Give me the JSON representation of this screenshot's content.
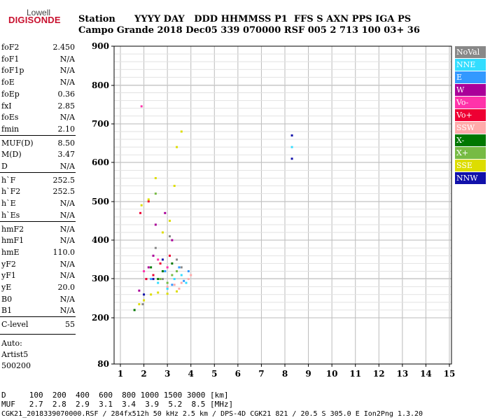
{
  "logo": {
    "top": "Lowell",
    "bottom": "DIGISONDE"
  },
  "header": {
    "row1": "Station      YYYY DAY   DDD HHMMSS P1  FFS S AXN PPS IGA PS",
    "row2": "Campo Grande 2018 Dec05 339 070000 RSF 005 2 713 100 03+ 36"
  },
  "params": [
    {
      "name": "foF2",
      "value": "2.450"
    },
    {
      "name": "foF1",
      "value": "N/A"
    },
    {
      "name": "foF1p",
      "value": "N/A"
    },
    {
      "name": "foE",
      "value": "N/A"
    },
    {
      "name": "foEp",
      "value": "0.36"
    },
    {
      "name": "fxI",
      "value": "2.85"
    },
    {
      "name": "foEs",
      "value": "N/A"
    },
    {
      "name": "fmin",
      "value": "2.10"
    },
    {
      "name": "MUF(D)",
      "value": "8.50"
    },
    {
      "name": "M(D)",
      "value": "3.47"
    },
    {
      "name": "D",
      "value": "N/A"
    },
    {
      "name": "h`F",
      "value": "252.5"
    },
    {
      "name": "h`F2",
      "value": "252.5"
    },
    {
      "name": "h`E",
      "value": "N/A"
    },
    {
      "name": "h`Es",
      "value": "N/A"
    },
    {
      "name": "hmF2",
      "value": "N/A"
    },
    {
      "name": "hmF1",
      "value": "N/A"
    },
    {
      "name": "hmE",
      "value": "110.0"
    },
    {
      "name": "yF2",
      "value": "N/A"
    },
    {
      "name": "yF1",
      "value": "N/A"
    },
    {
      "name": "yE",
      "value": "20.0"
    },
    {
      "name": "B0",
      "value": "N/A"
    },
    {
      "name": "B1",
      "value": "N/A"
    },
    {
      "name": "C-level",
      "value": "55"
    }
  ],
  "auto": {
    "line1": "Auto:",
    "line2": "Artist5",
    "line3": "500200"
  },
  "legend": [
    {
      "label": "NoVal",
      "color": "#888888"
    },
    {
      "label": "NNE",
      "color": "#33ddff"
    },
    {
      "label": "E",
      "color": "#3399ff"
    },
    {
      "label": "W",
      "color": "#aa0099"
    },
    {
      "label": "Vo-",
      "color": "#ff33aa"
    },
    {
      "label": "Vo+",
      "color": "#ee0033"
    },
    {
      "label": "SSW",
      "color": "#ffaaaa"
    },
    {
      "label": "X-",
      "color": "#007700"
    },
    {
      "label": "X+",
      "color": "#77bb44"
    },
    {
      "label": "SSE",
      "color": "#dddd00"
    },
    {
      "label": "NNW",
      "color": "#1111aa"
    }
  ],
  "footer": {
    "line1": "D     100  200  400  600  800 1000 1500 3000 [km]",
    "line2": "MUF   2.7  2.8  2.9  3.1  3.4  3.9  5.2  8.5 [MHz]",
    "line3": "CGK21_2018339070000.RSF / 284fx512h 50 kHz 2.5 km / DPS-4D CGK21 821 / 20.5 S 305.0 E Ion2Png 1.3.20"
  },
  "chart_data": {
    "type": "scatter",
    "xlabel": "",
    "ylabel": "",
    "xlim": [
      0.5,
      15
    ],
    "ylim": [
      80,
      900
    ],
    "xticks": [
      1,
      2,
      3,
      4,
      5,
      6,
      7,
      8,
      9,
      10,
      11,
      12,
      13,
      14,
      15
    ],
    "yticks": [
      80,
      200,
      300,
      400,
      500,
      600,
      700,
      800,
      900
    ],
    "grid": true,
    "series": [
      {
        "name": "NoVal",
        "color": "#888888",
        "points": [
          [
            1.95,
            235
          ],
          [
            2.1,
            300
          ],
          [
            2.5,
            380
          ],
          [
            3.1,
            410
          ],
          [
            3.4,
            350
          ],
          [
            2.8,
            300
          ],
          [
            3.6,
            330
          ]
        ]
      },
      {
        "name": "NNE",
        "color": "#33ddff",
        "points": [
          [
            2.6,
            290
          ],
          [
            3.0,
            275
          ],
          [
            3.3,
            300
          ],
          [
            3.6,
            310
          ],
          [
            3.8,
            290
          ],
          [
            8.3,
            640
          ],
          [
            2.9,
            320
          ]
        ]
      },
      {
        "name": "E",
        "color": "#3399ff",
        "points": [
          [
            2.3,
            300
          ],
          [
            2.9,
            320
          ],
          [
            3.5,
            330
          ],
          [
            3.7,
            295
          ],
          [
            3.9,
            320
          ],
          [
            3.2,
            285
          ]
        ]
      },
      {
        "name": "W",
        "color": "#aa0099",
        "points": [
          [
            2.2,
            330
          ],
          [
            2.5,
            440
          ],
          [
            2.9,
            470
          ],
          [
            3.2,
            400
          ],
          [
            1.8,
            270
          ],
          [
            2.4,
            360
          ]
        ]
      },
      {
        "name": "Vo-",
        "color": "#ff33aa",
        "points": [
          [
            2.0,
            320
          ],
          [
            2.6,
            350
          ],
          [
            3.0,
            330
          ],
          [
            1.9,
            745
          ],
          [
            2.4,
            300
          ]
        ]
      },
      {
        "name": "Vo+",
        "color": "#ee0033",
        "points": [
          [
            2.1,
            300
          ],
          [
            2.4,
            310
          ],
          [
            2.7,
            340
          ],
          [
            3.1,
            360
          ],
          [
            1.85,
            470
          ],
          [
            2.2,
            500
          ]
        ]
      },
      {
        "name": "SSW",
        "color": "#ffaaaa",
        "points": [
          [
            3.0,
            280
          ],
          [
            3.3,
            285
          ],
          [
            3.6,
            290
          ],
          [
            3.9,
            300
          ],
          [
            4.0,
            310
          ],
          [
            3.5,
            275
          ]
        ]
      },
      {
        "name": "X-",
        "color": "#007700",
        "points": [
          [
            1.6,
            220
          ],
          [
            2.6,
            300
          ],
          [
            2.8,
            320
          ],
          [
            3.2,
            340
          ],
          [
            2.3,
            330
          ]
        ]
      },
      {
        "name": "X+",
        "color": "#77bb44",
        "points": [
          [
            2.7,
            300
          ],
          [
            3.2,
            310
          ],
          [
            3.4,
            320
          ],
          [
            3.0,
            290
          ],
          [
            2.5,
            520
          ]
        ]
      },
      {
        "name": "SSE",
        "color": "#dddd00",
        "points": [
          [
            1.8,
            235
          ],
          [
            2.0,
            245
          ],
          [
            2.3,
            260
          ],
          [
            2.6,
            265
          ],
          [
            3.0,
            262
          ],
          [
            3.4,
            268
          ],
          [
            1.9,
            490
          ],
          [
            2.2,
            505
          ],
          [
            2.5,
            560
          ],
          [
            3.3,
            540
          ],
          [
            3.6,
            680
          ],
          [
            3.4,
            640
          ],
          [
            2.8,
            420
          ],
          [
            3.1,
            450
          ]
        ]
      },
      {
        "name": "NNW",
        "color": "#1111aa",
        "points": [
          [
            2.0,
            260
          ],
          [
            2.4,
            300
          ],
          [
            2.8,
            350
          ],
          [
            8.3,
            610
          ],
          [
            8.3,
            670
          ]
        ]
      }
    ]
  }
}
